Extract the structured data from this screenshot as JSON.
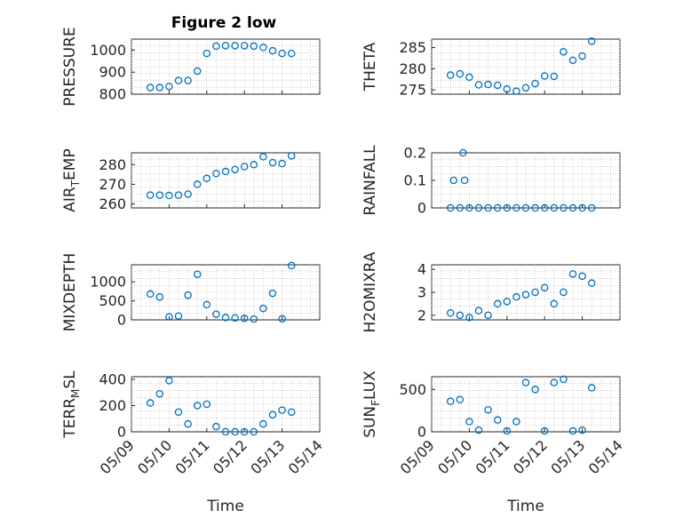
{
  "figure": {
    "title": "Figure 2 low",
    "marker_color": "#0072bd"
  },
  "chart_data": [
    {
      "type": "scatter",
      "ylabel": "PRESSURE",
      "xlim": [
        "05/09",
        "05/14"
      ],
      "ylim": [
        800,
        1050
      ],
      "yticks": [
        800,
        900,
        1000
      ],
      "grid": true,
      "x": [
        "05/09 12:00",
        "05/09 18:00",
        "05/10 00:00",
        "05/10 06:00",
        "05/10 12:00",
        "05/10 18:00",
        "05/11 00:00",
        "05/11 06:00",
        "05/11 12:00",
        "05/11 18:00",
        "05/12 00:00",
        "05/12 06:00",
        "05/12 12:00",
        "05/12 18:00",
        "05/13 00:00",
        "05/13 06:00"
      ],
      "values": [
        830,
        830,
        835,
        862,
        862,
        905,
        985,
        1018,
        1020,
        1020,
        1020,
        1018,
        1012,
        997,
        985,
        985
      ]
    },
    {
      "type": "scatter",
      "ylabel": "THETA",
      "xlim": [
        "05/09",
        "05/14"
      ],
      "ylim": [
        274,
        287
      ],
      "yticks": [
        275,
        280,
        285
      ],
      "grid": true,
      "x": [
        "05/09 12:00",
        "05/09 18:00",
        "05/10 00:00",
        "05/10 06:00",
        "05/10 12:00",
        "05/10 18:00",
        "05/11 00:00",
        "05/11 06:00",
        "05/11 12:00",
        "05/11 18:00",
        "05/12 00:00",
        "05/12 06:00",
        "05/12 12:00",
        "05/12 18:00",
        "05/13 00:00",
        "05/13 06:00"
      ],
      "values": [
        278.5,
        278.8,
        278.0,
        276.2,
        276.3,
        276.1,
        275.2,
        274.7,
        275.5,
        276.5,
        278.3,
        278.2,
        284.0,
        282.0,
        283.0,
        286.5
      ]
    },
    {
      "type": "scatter",
      "ylabel": "AIR_TEMP",
      "xlim": [
        "05/09",
        "05/14"
      ],
      "ylim": [
        258,
        286
      ],
      "yticks": [
        260,
        270,
        280
      ],
      "grid": true,
      "x": [
        "05/09 12:00",
        "05/09 18:00",
        "05/10 00:00",
        "05/10 06:00",
        "05/10 12:00",
        "05/10 18:00",
        "05/11 00:00",
        "05/11 06:00",
        "05/11 12:00",
        "05/11 18:00",
        "05/12 00:00",
        "05/12 06:00",
        "05/12 12:00",
        "05/12 18:00",
        "05/13 00:00",
        "05/13 06:00"
      ],
      "values": [
        264.5,
        264.5,
        264.3,
        264.5,
        265.0,
        270.0,
        273.0,
        275.5,
        276.5,
        277.5,
        279.0,
        280.0,
        284.0,
        281.0,
        280.5,
        284.5
      ]
    },
    {
      "type": "scatter",
      "ylabel": "RAINFALL",
      "xlim": [
        "05/09",
        "05/14"
      ],
      "ylim": [
        0,
        0.2
      ],
      "yticks": [
        0,
        0.1,
        0.2
      ],
      "grid": true,
      "x": [
        "05/09 12:00",
        "05/09 18:00",
        "05/10 00:00",
        "05/10 06:00",
        "05/10 12:00",
        "05/10 18:00",
        "05/11 00:00",
        "05/11 06:00",
        "05/11 12:00",
        "05/11 18:00",
        "05/12 00:00",
        "05/12 06:00",
        "05/12 12:00",
        "05/12 18:00",
        "05/13 00:00",
        "05/13 06:00",
        "05/09 14:00",
        "05/09 20:00",
        "05/09 21:00"
      ],
      "values": [
        0,
        0,
        0,
        0,
        0,
        0,
        0,
        0,
        0,
        0,
        0,
        0,
        0,
        0,
        0,
        0,
        0.1,
        0.2,
        0.1
      ]
    },
    {
      "type": "scatter",
      "ylabel": "MIXDEPTH",
      "xlim": [
        "05/09",
        "05/14"
      ],
      "ylim": [
        0,
        1450
      ],
      "yticks": [
        0,
        500,
        1000
      ],
      "grid": true,
      "x": [
        "05/09 12:00",
        "05/09 18:00",
        "05/10 00:00",
        "05/10 06:00",
        "05/10 12:00",
        "05/10 18:00",
        "05/11 00:00",
        "05/11 06:00",
        "05/11 12:00",
        "05/11 18:00",
        "05/12 00:00",
        "05/12 06:00",
        "05/12 12:00",
        "05/12 18:00",
        "05/13 00:00",
        "05/13 06:00"
      ],
      "values": [
        680,
        600,
        80,
        100,
        650,
        1200,
        400,
        150,
        60,
        50,
        40,
        20,
        300,
        700,
        30,
        1430
      ]
    },
    {
      "type": "scatter",
      "ylabel": "H2OMIXRA",
      "xlim": [
        "05/09",
        "05/14"
      ],
      "ylim": [
        1.8,
        4.2
      ],
      "yticks": [
        2,
        3,
        4
      ],
      "grid": true,
      "x": [
        "05/09 12:00",
        "05/09 18:00",
        "05/10 00:00",
        "05/10 06:00",
        "05/10 12:00",
        "05/10 18:00",
        "05/11 00:00",
        "05/11 06:00",
        "05/11 12:00",
        "05/11 18:00",
        "05/12 00:00",
        "05/12 06:00",
        "05/12 12:00",
        "05/12 18:00",
        "05/13 00:00",
        "05/13 06:00"
      ],
      "values": [
        2.1,
        2.0,
        1.9,
        2.2,
        2.0,
        2.5,
        2.6,
        2.8,
        2.9,
        3.0,
        3.2,
        2.5,
        3.0,
        3.8,
        3.7,
        3.4
      ]
    },
    {
      "type": "scatter",
      "ylabel": "TERR_MSL",
      "xlim": [
        "05/09",
        "05/14"
      ],
      "ylim": [
        0,
        420
      ],
      "yticks": [
        0,
        200,
        400
      ],
      "grid": true,
      "x": [
        "05/09 12:00",
        "05/09 18:00",
        "05/10 00:00",
        "05/10 06:00",
        "05/10 12:00",
        "05/10 18:00",
        "05/11 00:00",
        "05/11 06:00",
        "05/11 12:00",
        "05/11 18:00",
        "05/12 00:00",
        "05/12 06:00",
        "05/12 12:00",
        "05/12 18:00",
        "05/13 00:00",
        "05/13 06:00"
      ],
      "values": [
        220,
        290,
        390,
        150,
        60,
        200,
        210,
        40,
        0,
        0,
        0,
        0,
        60,
        130,
        165,
        150
      ]
    },
    {
      "type": "scatter",
      "ylabel": "SUN_FLUX",
      "xlim": [
        "05/09",
        "05/14"
      ],
      "ylim": [
        0,
        650
      ],
      "yticks": [
        0,
        500
      ],
      "grid": true,
      "x": [
        "05/09 12:00",
        "05/09 18:00",
        "05/10 00:00",
        "05/10 06:00",
        "05/10 12:00",
        "05/10 18:00",
        "05/11 00:00",
        "05/11 06:00",
        "05/11 12:00",
        "05/11 18:00",
        "05/12 00:00",
        "05/12 06:00",
        "05/12 12:00",
        "05/12 18:00",
        "05/13 00:00",
        "05/13 06:00"
      ],
      "values": [
        360,
        380,
        120,
        20,
        260,
        140,
        10,
        120,
        580,
        500,
        10,
        580,
        620,
        10,
        20,
        520
      ]
    }
  ],
  "xaxis": {
    "label": "Time",
    "ticks": [
      "05/09",
      "05/10",
      "05/11",
      "05/12",
      "05/13",
      "05/14"
    ]
  },
  "ylabel_display": [
    {
      "main": "PRESSURE",
      "sub": "",
      "tail": ""
    },
    {
      "main": "THETA",
      "sub": "",
      "tail": ""
    },
    {
      "main": "AIR",
      "sub": "T",
      "tail": "EMP"
    },
    {
      "main": "RAINFALL",
      "sub": "",
      "tail": ""
    },
    {
      "main": "MIXDEPTH",
      "sub": "",
      "tail": ""
    },
    {
      "main": "H2OMIXRA",
      "sub": "",
      "tail": ""
    },
    {
      "main": "TERR",
      "sub": "M",
      "tail": "SL"
    },
    {
      "main": "SUN",
      "sub": "F",
      "tail": "LUX"
    }
  ]
}
